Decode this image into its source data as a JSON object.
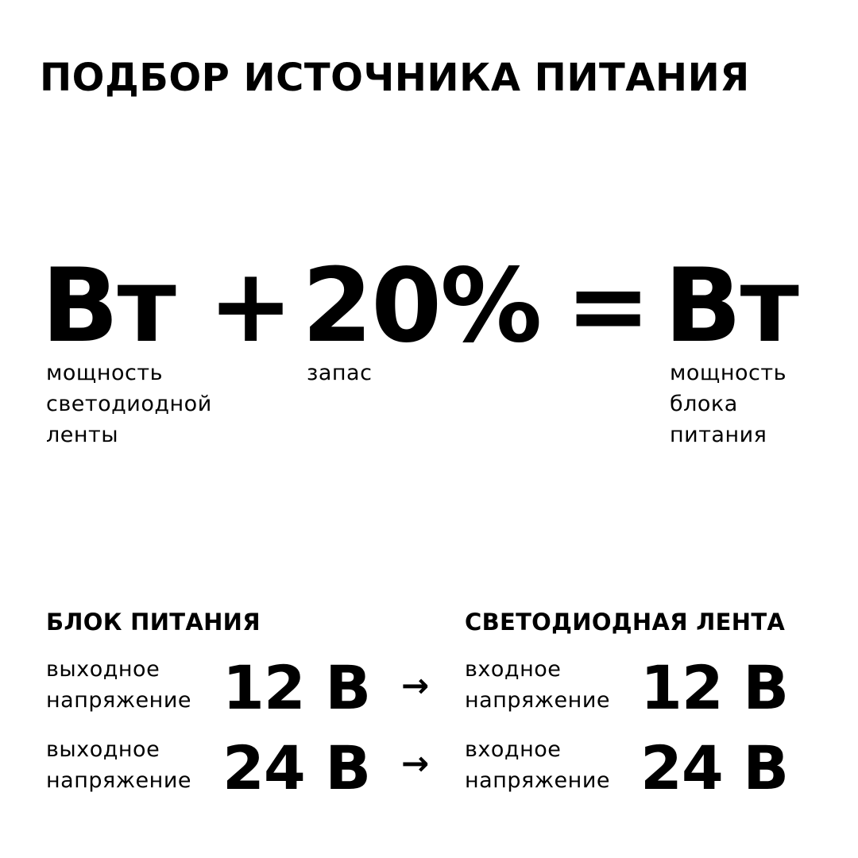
{
  "title": "ПОДБОР ИСТОЧНИКА ПИТАНИЯ",
  "formula": {
    "term1": "Вт",
    "plus": "+",
    "term2": "20%",
    "equals": "=",
    "result": "Вт",
    "caption1": [
      "мощность",
      "светодиодной",
      "ленты"
    ],
    "caption2": "запас",
    "caption3": [
      "мощность",
      "блока",
      "питания"
    ]
  },
  "psu": {
    "heading": "БЛОК ПИТАНИЯ",
    "rows": [
      {
        "label1": "выходное",
        "label2": "напряжение",
        "value": "12 В"
      },
      {
        "label1": "выходное",
        "label2": "напряжение",
        "value": "24 В"
      }
    ]
  },
  "strip": {
    "heading": "СВЕТОДИОДНАЯ ЛЕНТА",
    "rows": [
      {
        "label1": "входное",
        "label2": "напряжение",
        "value": "12 В"
      },
      {
        "label1": "входное",
        "label2": "напряжение",
        "value": "24 В"
      }
    ]
  },
  "arrow": "→"
}
